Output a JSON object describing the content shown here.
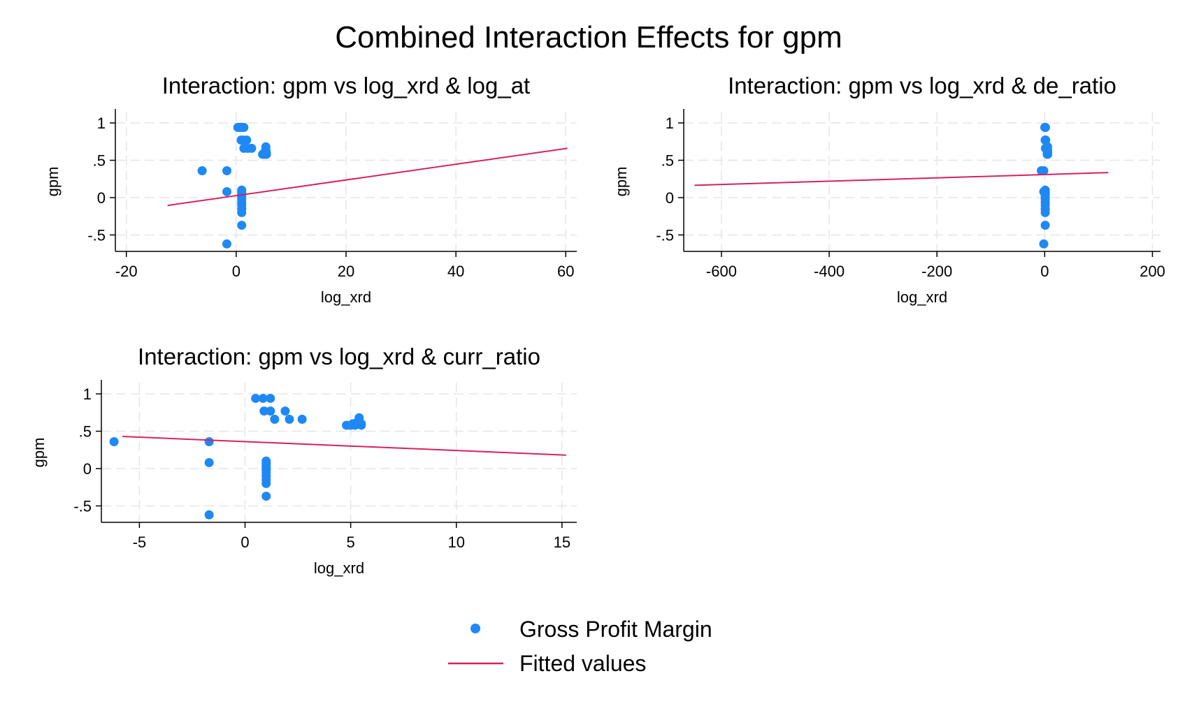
{
  "title": "Combined Interaction Effects for gpm",
  "colors": {
    "points": "#1e88f5",
    "line": "#d6225f",
    "grid": "#e6e6e6",
    "axis": "#000000"
  },
  "legend": {
    "items": [
      {
        "label": "Gross Profit Margin",
        "kind": "marker"
      },
      {
        "label": "Fitted values",
        "kind": "line"
      }
    ]
  },
  "chart_data": [
    {
      "type": "scatter",
      "title": "Interaction: gpm vs log_xrd & log_at",
      "xlabel": "log_xrd",
      "ylabel": "gpm",
      "xlim": [
        -22,
        62
      ],
      "ylim": [
        -0.72,
        1.15
      ],
      "xticks": [
        -20,
        0,
        20,
        40,
        60
      ],
      "xtick_labels": [
        "-20",
        "0",
        "20",
        "40",
        "60"
      ],
      "yticks": [
        -0.5,
        0,
        0.5,
        1
      ],
      "ytick_labels": [
        "-.5",
        "0",
        ".5",
        "1"
      ],
      "grid": true,
      "points": [
        [
          -6.2,
          0.36
        ],
        [
          -1.7,
          0.36
        ],
        [
          -1.7,
          0.08
        ],
        [
          -1.7,
          -0.62
        ],
        [
          0.3,
          0.94
        ],
        [
          0.6,
          0.94
        ],
        [
          0.9,
          0.94
        ],
        [
          1.1,
          0.94
        ],
        [
          1.4,
          0.94
        ],
        [
          0.9,
          0.77
        ],
        [
          1.3,
          0.77
        ],
        [
          1.9,
          0.77
        ],
        [
          1.4,
          0.66
        ],
        [
          2.1,
          0.66
        ],
        [
          2.8,
          0.66
        ],
        [
          1.0,
          0.1
        ],
        [
          1.0,
          0.07
        ],
        [
          1.0,
          0.04
        ],
        [
          1.0,
          0.01
        ],
        [
          1.0,
          -0.02
        ],
        [
          1.0,
          -0.06
        ],
        [
          1.0,
          -0.1
        ],
        [
          1.0,
          -0.15
        ],
        [
          1.0,
          -0.2
        ],
        [
          1.0,
          -0.37
        ],
        [
          4.8,
          0.58
        ],
        [
          5.0,
          0.58
        ],
        [
          5.1,
          0.6
        ],
        [
          5.2,
          0.58
        ],
        [
          5.3,
          0.62
        ],
        [
          5.4,
          0.68
        ],
        [
          5.4,
          0.64
        ],
        [
          5.5,
          0.6
        ],
        [
          5.5,
          0.58
        ]
      ],
      "fitted": {
        "x": [
          -12.5,
          60.3
        ],
        "y": [
          -0.105,
          0.66
        ]
      }
    },
    {
      "type": "scatter",
      "title": "Interaction: gpm vs log_xrd & de_ratio",
      "xlabel": "log_xrd",
      "ylabel": "gpm",
      "xlim": [
        -670,
        215
      ],
      "ylim": [
        -0.72,
        1.15
      ],
      "xticks": [
        -600,
        -400,
        -200,
        0,
        200
      ],
      "xtick_labels": [
        "-600",
        "-400",
        "-200",
        "0",
        "200"
      ],
      "yticks": [
        -0.5,
        0,
        0.5,
        1
      ],
      "ytick_labels": [
        "-.5",
        "0",
        ".5",
        "1"
      ],
      "grid": true,
      "points": [
        [
          -6.2,
          0.36
        ],
        [
          -1.7,
          0.36
        ],
        [
          -1.7,
          0.08
        ],
        [
          -1.7,
          -0.62
        ],
        [
          0.3,
          0.94
        ],
        [
          0.6,
          0.94
        ],
        [
          0.9,
          0.94
        ],
        [
          1.1,
          0.94
        ],
        [
          1.4,
          0.94
        ],
        [
          0.9,
          0.77
        ],
        [
          1.3,
          0.77
        ],
        [
          1.9,
          0.77
        ],
        [
          1.4,
          0.66
        ],
        [
          2.1,
          0.66
        ],
        [
          2.8,
          0.66
        ],
        [
          1.0,
          0.1
        ],
        [
          1.0,
          0.07
        ],
        [
          1.0,
          0.04
        ],
        [
          1.0,
          0.01
        ],
        [
          1.0,
          -0.02
        ],
        [
          1.0,
          -0.06
        ],
        [
          1.0,
          -0.1
        ],
        [
          1.0,
          -0.15
        ],
        [
          1.0,
          -0.2
        ],
        [
          1.0,
          -0.37
        ],
        [
          4.8,
          0.58
        ],
        [
          5.0,
          0.58
        ],
        [
          5.1,
          0.6
        ],
        [
          5.2,
          0.58
        ],
        [
          5.3,
          0.62
        ],
        [
          5.4,
          0.68
        ],
        [
          5.4,
          0.64
        ],
        [
          5.5,
          0.6
        ],
        [
          5.5,
          0.58
        ]
      ],
      "fitted": {
        "x": [
          -650,
          118
        ],
        "y": [
          0.165,
          0.335
        ]
      }
    },
    {
      "type": "scatter",
      "title": "Interaction: gpm vs log_xrd & curr_ratio",
      "xlabel": "log_xrd",
      "ylabel": "gpm",
      "xlim": [
        -6.8,
        15.7
      ],
      "ylim": [
        -0.72,
        1.15
      ],
      "xticks": [
        -5,
        0,
        5,
        10,
        15
      ],
      "xtick_labels": [
        "-5",
        "0",
        "5",
        "10",
        "15"
      ],
      "yticks": [
        -0.5,
        0,
        0.5,
        1
      ],
      "ytick_labels": [
        "-.5",
        "0",
        ".5",
        "1"
      ],
      "grid": true,
      "points": [
        [
          -6.2,
          0.36
        ],
        [
          -1.7,
          0.36
        ],
        [
          -1.7,
          0.08
        ],
        [
          -1.7,
          -0.62
        ],
        [
          0.5,
          0.94
        ],
        [
          0.85,
          0.94
        ],
        [
          1.2,
          0.94
        ],
        [
          0.9,
          0.77
        ],
        [
          1.2,
          0.77
        ],
        [
          1.9,
          0.77
        ],
        [
          1.4,
          0.66
        ],
        [
          2.1,
          0.66
        ],
        [
          2.7,
          0.66
        ],
        [
          1.0,
          0.1
        ],
        [
          1.0,
          0.07
        ],
        [
          1.0,
          0.04
        ],
        [
          1.0,
          0.01
        ],
        [
          1.0,
          -0.02
        ],
        [
          1.0,
          -0.06
        ],
        [
          1.0,
          -0.1
        ],
        [
          1.0,
          -0.15
        ],
        [
          1.0,
          -0.2
        ],
        [
          1.0,
          -0.37
        ],
        [
          4.8,
          0.58
        ],
        [
          5.0,
          0.58
        ],
        [
          5.1,
          0.6
        ],
        [
          5.2,
          0.58
        ],
        [
          5.3,
          0.62
        ],
        [
          5.4,
          0.68
        ],
        [
          5.4,
          0.64
        ],
        [
          5.5,
          0.6
        ],
        [
          5.5,
          0.58
        ]
      ],
      "fitted": {
        "x": [
          -5.8,
          15.2
        ],
        "y": [
          0.43,
          0.18
        ]
      }
    }
  ]
}
